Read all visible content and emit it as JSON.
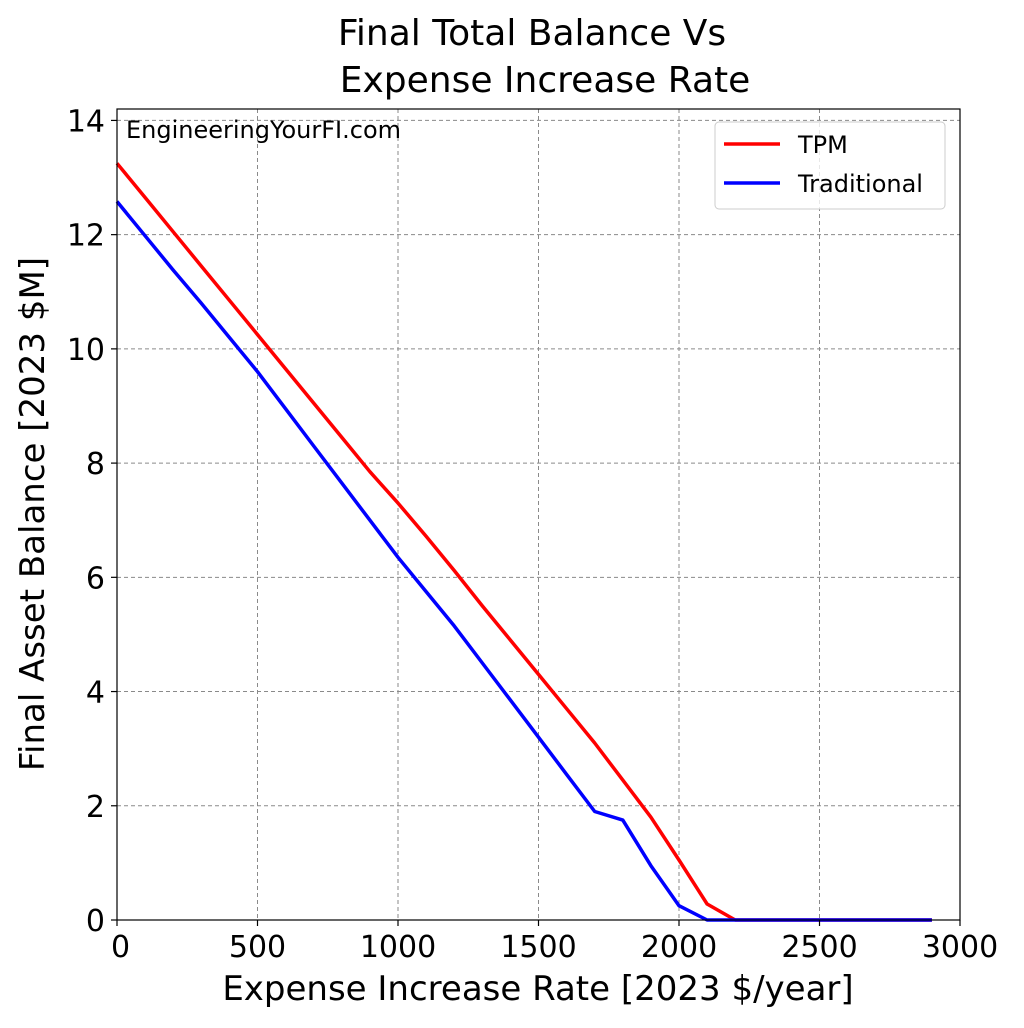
{
  "chart_data": {
    "type": "line",
    "title_lines": [
      "Final Total Balance Vs",
      "Expense Increase Rate"
    ],
    "xlabel": "Expense Increase Rate [2023 $/year]",
    "ylabel": "Final Asset Balance [2023 $M]",
    "xlim": [
      0,
      3000
    ],
    "ylim": [
      0,
      14.2
    ],
    "xticks": [
      0,
      500,
      1000,
      1500,
      2000,
      2500,
      3000
    ],
    "yticks": [
      0,
      2,
      4,
      6,
      8,
      10,
      12,
      14
    ],
    "grid": true,
    "legend_position": "top-right",
    "annotation": "EngineeringYourFI.com",
    "series": [
      {
        "name": "TPM",
        "color": "#ff0000",
        "x": [
          0,
          100,
          200,
          300,
          400,
          500,
          600,
          700,
          800,
          900,
          1000,
          1100,
          1200,
          1300,
          1400,
          1500,
          1600,
          1700,
          1800,
          1900,
          2000,
          2100,
          2200,
          2300,
          2400,
          2500,
          2600,
          2700,
          2800,
          2900
        ],
        "values": [
          13.25,
          12.65,
          12.05,
          11.45,
          10.85,
          10.25,
          9.65,
          9.05,
          8.45,
          7.85,
          7.3,
          6.72,
          6.12,
          5.5,
          4.9,
          4.3,
          3.7,
          3.1,
          2.45,
          1.8,
          1.05,
          0.28,
          0.0,
          0.0,
          0.0,
          0.0,
          0.0,
          0.0,
          0.0,
          0.0
        ]
      },
      {
        "name": "Traditional",
        "color": "#0000ff",
        "x": [
          0,
          100,
          200,
          300,
          400,
          500,
          600,
          700,
          800,
          900,
          1000,
          1100,
          1200,
          1300,
          1400,
          1500,
          1600,
          1700,
          1800,
          1900,
          2000,
          2100,
          2200,
          2300,
          2400,
          2500,
          2600,
          2700,
          2800,
          2900
        ],
        "values": [
          12.58,
          11.98,
          11.38,
          10.8,
          10.2,
          9.6,
          8.95,
          8.3,
          7.65,
          7.0,
          6.35,
          5.75,
          5.15,
          4.5,
          3.85,
          3.2,
          2.55,
          1.9,
          1.75,
          0.95,
          0.25,
          0.0,
          0.0,
          0.0,
          0.0,
          0.0,
          0.0,
          0.0,
          0.0,
          0.0
        ]
      }
    ]
  }
}
